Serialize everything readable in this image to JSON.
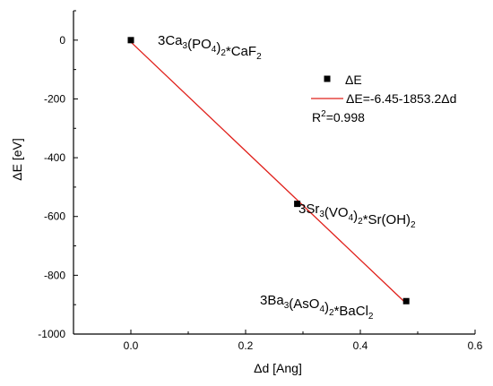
{
  "chart_data": {
    "type": "scatter",
    "xlabel": "Δd [Ang]",
    "ylabel": "ΔE [eV]",
    "xlim": [
      -0.1,
      0.6
    ],
    "ylim": [
      -1000,
      100
    ],
    "x_ticks": [
      "0.0",
      "0.2",
      "0.4",
      "0.6"
    ],
    "y_ticks": [
      "0",
      "-200",
      "-400",
      "-600",
      "-800",
      "-1000"
    ],
    "grid": false,
    "series": [
      {
        "name": "ΔE",
        "type": "scatter",
        "color": "#000000",
        "marker": "square",
        "points": [
          {
            "x": 0.0,
            "y": 0
          },
          {
            "x": 0.29,
            "y": -557
          },
          {
            "x": 0.48,
            "y": -888
          }
        ]
      },
      {
        "name": "ΔE=-6.45-1853.2Δd",
        "type": "line",
        "color": "#e0201b",
        "intercept": -6.45,
        "slope": -1853.2,
        "x_range": [
          0.0,
          0.48
        ]
      }
    ],
    "annotations": [
      {
        "parts": [
          [
            "3Ca",
            ""
          ],
          [
            "3",
            "sub"
          ],
          [
            "(PO",
            ""
          ],
          [
            "4",
            "sub"
          ],
          [
            ")",
            ""
          ],
          [
            "2",
            "sub"
          ],
          [
            "*CaF",
            ""
          ],
          [
            "2",
            "sub"
          ]
        ]
      },
      {
        "parts": [
          [
            "3Sr",
            ""
          ],
          [
            "3",
            "sub"
          ],
          [
            "(VO",
            ""
          ],
          [
            "4",
            "sub"
          ],
          [
            ")",
            ""
          ],
          [
            "2",
            "sub"
          ],
          [
            "*Sr(OH)",
            ""
          ],
          [
            "2",
            "sub"
          ]
        ]
      },
      {
        "parts": [
          [
            "3Ba",
            ""
          ],
          [
            "3",
            "sub"
          ],
          [
            "(AsO",
            ""
          ],
          [
            "4",
            "sub"
          ],
          [
            ")",
            ""
          ],
          [
            "2",
            "sub"
          ],
          [
            "*BaCl",
            ""
          ],
          [
            "2",
            "sub"
          ]
        ]
      }
    ],
    "legend": {
      "position": "top-right",
      "entries": [
        "ΔE",
        "ΔE=-6.45-1853.2Δd"
      ],
      "r2": {
        "prefix": "R",
        "sup": "2",
        "suffix": "=0.998"
      }
    }
  }
}
